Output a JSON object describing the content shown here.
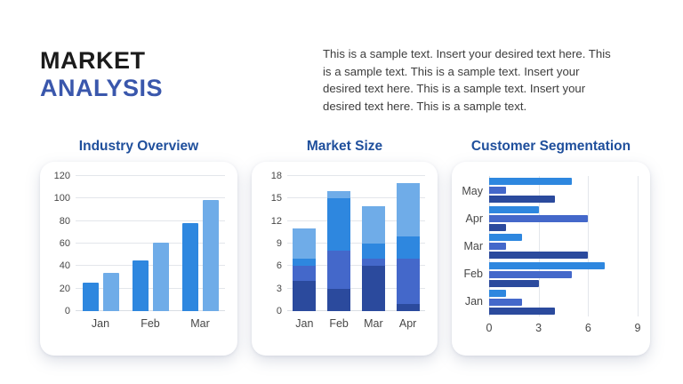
{
  "header": {
    "title_line1": "MARKET",
    "title_line2": "ANALYSIS",
    "description": "This is a sample text. Insert your desired text here. This is a sample text. This is a sample text. Insert your desired text here. This is a sample text. Insert your desired text here. This is a sample text."
  },
  "colors": {
    "bright_blue": "#2e87df",
    "light_blue": "#6face8",
    "indigo_blue": "#4468ca",
    "navy_blue": "#2b4a9d",
    "section_title": "#1f4f9c",
    "accent_title": "#3a57ac"
  },
  "chart_data": [
    {
      "id": "industry-overview",
      "type": "bar",
      "title": "Industry Overview",
      "categories": [
        "Jan",
        "Feb",
        "Mar"
      ],
      "series": [
        {
          "name": "series-dark",
          "color": "#2e87df",
          "values": [
            25,
            45,
            78
          ]
        },
        {
          "name": "series-light",
          "color": "#6face8",
          "values": [
            34,
            61,
            99
          ]
        }
      ],
      "ylim": [
        0,
        120
      ],
      "yticks": [
        0,
        20,
        40,
        60,
        80,
        100,
        120
      ],
      "grid": true,
      "legend": "none"
    },
    {
      "id": "market-size",
      "type": "stacked-bar",
      "title": "Market Size",
      "categories": [
        "Jan",
        "Feb",
        "Mar",
        "Apr"
      ],
      "series": [
        {
          "name": "segment-navy",
          "color": "#2b4a9d",
          "values": [
            4,
            3,
            6,
            1
          ]
        },
        {
          "name": "segment-indigo",
          "color": "#4468ca",
          "values": [
            2,
            5,
            1,
            6
          ]
        },
        {
          "name": "segment-bright",
          "color": "#2e87df",
          "values": [
            1,
            7,
            2,
            3
          ]
        },
        {
          "name": "segment-light",
          "color": "#6face8",
          "values": [
            4,
            1,
            5,
            7
          ]
        }
      ],
      "ylim": [
        0,
        18
      ],
      "yticks": [
        0,
        3,
        6,
        9,
        12,
        15,
        18
      ],
      "grid": true,
      "legend": "none"
    },
    {
      "id": "customer-segmentation",
      "type": "horizontal-bar",
      "title": "Customer Segmentation",
      "categories": [
        "May",
        "Apr",
        "Mar",
        "Feb",
        "Jan"
      ],
      "series": [
        {
          "name": "series-bright",
          "color": "#2e87df",
          "values": [
            5,
            3,
            2,
            7,
            1
          ]
        },
        {
          "name": "series-indigo",
          "color": "#4468ca",
          "values": [
            1,
            6,
            1,
            5,
            2
          ]
        },
        {
          "name": "series-navy",
          "color": "#2b4a9d",
          "values": [
            4,
            1,
            6,
            3,
            4
          ]
        }
      ],
      "xlim": [
        0,
        9
      ],
      "xticks": [
        0,
        3,
        6,
        9
      ],
      "grid": true,
      "legend": "none"
    }
  ]
}
